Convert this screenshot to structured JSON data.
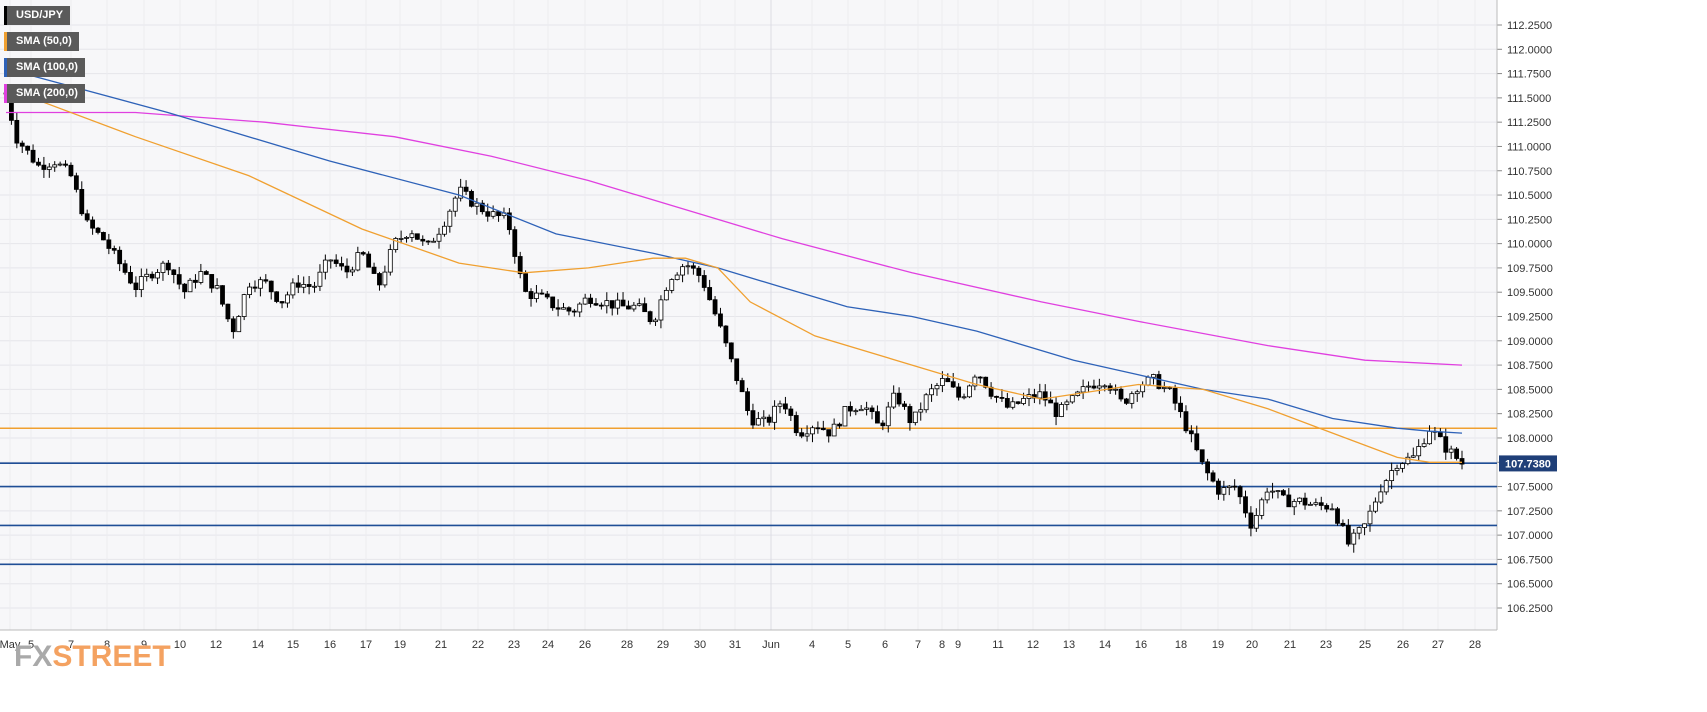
{
  "chart_data": {
    "type": "candlestick",
    "symbol": "USD/JPY",
    "legend": [
      {
        "label": "USD/JPY",
        "color": "#000000"
      },
      {
        "label": "SMA (50,0)",
        "color": "#f0a030"
      },
      {
        "label": "SMA (100,0)",
        "color": "#2e62b8"
      },
      {
        "label": "SMA (200,0)",
        "color": "#e040e0"
      }
    ],
    "ylim": [
      106.0,
      112.5
    ],
    "y_ticks": [
      "112.2500",
      "112.0000",
      "111.7500",
      "111.5000",
      "111.2500",
      "111.0000",
      "110.7500",
      "110.5000",
      "110.2500",
      "110.0000",
      "109.7500",
      "109.5000",
      "109.2500",
      "109.0000",
      "108.7500",
      "108.5000",
      "108.2500",
      "108.0000",
      "107.7500",
      "107.5000",
      "107.2500",
      "107.0000",
      "106.7500",
      "106.5000",
      "106.2500"
    ],
    "x_ticks": [
      "May",
      "5",
      "7",
      "8",
      "9",
      "10",
      "12",
      "14",
      "15",
      "16",
      "17",
      "19",
      "21",
      "22",
      "23",
      "24",
      "26",
      "28",
      "29",
      "30",
      "31",
      "Jun",
      "4",
      "5",
      "6",
      "7",
      "8",
      "9",
      "11",
      "12",
      "13",
      "14",
      "16",
      "18",
      "19",
      "20",
      "21",
      "23",
      "25",
      "26",
      "27",
      "28"
    ],
    "current_price": "107.7380",
    "horizontal_levels": [
      {
        "value": 108.1,
        "color": "#f0a030"
      },
      {
        "value": 107.74,
        "color": "#1f4e96"
      },
      {
        "value": 107.5,
        "color": "#1f4e96"
      },
      {
        "value": 107.1,
        "color": "#1f4e96"
      },
      {
        "value": 106.7,
        "color": "#1f4e96"
      }
    ],
    "price_path": [
      [
        0,
        111.55
      ],
      [
        0.6,
        111.1
      ],
      [
        2,
        110.8
      ],
      [
        3,
        110.85
      ],
      [
        4,
        110.7
      ],
      [
        5,
        110.2
      ],
      [
        6,
        110.05
      ],
      [
        7,
        109.8
      ],
      [
        8,
        109.55
      ],
      [
        9,
        109.7
      ],
      [
        10,
        109.8
      ],
      [
        11,
        109.5
      ],
      [
        12,
        109.7
      ],
      [
        13,
        109.55
      ],
      [
        14,
        109.1
      ],
      [
        15,
        109.6
      ],
      [
        16,
        109.6
      ],
      [
        17,
        109.4
      ],
      [
        18,
        109.6
      ],
      [
        19,
        109.55
      ],
      [
        20,
        109.85
      ],
      [
        21,
        109.7
      ],
      [
        22,
        109.9
      ],
      [
        23,
        109.55
      ],
      [
        24,
        110.0
      ],
      [
        25,
        110.15
      ],
      [
        26,
        109.95
      ],
      [
        27,
        110.2
      ],
      [
        28,
        110.55
      ],
      [
        29,
        110.4
      ],
      [
        30,
        110.3
      ],
      [
        31,
        110.25
      ],
      [
        32,
        109.5
      ],
      [
        33,
        109.45
      ],
      [
        34,
        109.35
      ],
      [
        35,
        109.3
      ],
      [
        36,
        109.45
      ],
      [
        37,
        109.4
      ],
      [
        38,
        109.35
      ],
      [
        39,
        109.35
      ],
      [
        40,
        109.2
      ],
      [
        41,
        109.65
      ],
      [
        42,
        109.8
      ],
      [
        43,
        109.65
      ],
      [
        44,
        109.2
      ],
      [
        45,
        108.7
      ],
      [
        46,
        108.2
      ],
      [
        47,
        108.15
      ],
      [
        48,
        108.4
      ],
      [
        49,
        108.05
      ],
      [
        50,
        108.15
      ],
      [
        51,
        108.05
      ],
      [
        52,
        108.3
      ],
      [
        53,
        108.35
      ],
      [
        54,
        108.1
      ],
      [
        55,
        108.45
      ],
      [
        56,
        108.15
      ],
      [
        57,
        108.45
      ],
      [
        58,
        108.6
      ],
      [
        59,
        108.4
      ],
      [
        60,
        108.7
      ],
      [
        61,
        108.45
      ],
      [
        62,
        108.3
      ],
      [
        63,
        108.4
      ],
      [
        64,
        108.45
      ],
      [
        65,
        108.25
      ],
      [
        66,
        108.4
      ],
      [
        67,
        108.55
      ],
      [
        68,
        108.6
      ],
      [
        69,
        108.35
      ],
      [
        70,
        108.55
      ],
      [
        71,
        108.6
      ],
      [
        72,
        108.45
      ],
      [
        73,
        108.1
      ],
      [
        74,
        107.7
      ],
      [
        75,
        107.45
      ],
      [
        76,
        107.5
      ],
      [
        77,
        107.1
      ],
      [
        78,
        107.5
      ],
      [
        79,
        107.35
      ],
      [
        80,
        107.35
      ],
      [
        81,
        107.3
      ],
      [
        82,
        107.3
      ],
      [
        83,
        106.9
      ],
      [
        84,
        107.1
      ],
      [
        85,
        107.5
      ],
      [
        86,
        107.75
      ],
      [
        87,
        107.8
      ],
      [
        88,
        108.1
      ],
      [
        89,
        107.9
      ],
      [
        90,
        107.74
      ]
    ],
    "sma50_path": [
      [
        0,
        111.6
      ],
      [
        8,
        111.1
      ],
      [
        15,
        110.7
      ],
      [
        22,
        110.15
      ],
      [
        28,
        109.8
      ],
      [
        32,
        109.7
      ],
      [
        36,
        109.75
      ],
      [
        40,
        109.85
      ],
      [
        42,
        109.85
      ],
      [
        44,
        109.75
      ],
      [
        46,
        109.4
      ],
      [
        50,
        109.05
      ],
      [
        55,
        108.8
      ],
      [
        60,
        108.55
      ],
      [
        64,
        108.4
      ],
      [
        70,
        108.55
      ],
      [
        74,
        108.5
      ],
      [
        78,
        108.3
      ],
      [
        82,
        108.05
      ],
      [
        86,
        107.8
      ],
      [
        88,
        107.75
      ],
      [
        90,
        107.75
      ]
    ],
    "sma100_path": [
      [
        0,
        111.8
      ],
      [
        10,
        111.35
      ],
      [
        20,
        110.85
      ],
      [
        28,
        110.5
      ],
      [
        34,
        110.1
      ],
      [
        40,
        109.9
      ],
      [
        44,
        109.75
      ],
      [
        48,
        109.55
      ],
      [
        52,
        109.35
      ],
      [
        56,
        109.25
      ],
      [
        60,
        109.1
      ],
      [
        66,
        108.8
      ],
      [
        70,
        108.65
      ],
      [
        74,
        108.5
      ],
      [
        78,
        108.4
      ],
      [
        82,
        108.2
      ],
      [
        86,
        108.1
      ],
      [
        88,
        108.07
      ],
      [
        90,
        108.05
      ]
    ],
    "sma200_path": [
      [
        0,
        111.35
      ],
      [
        8,
        111.35
      ],
      [
        16,
        111.25
      ],
      [
        24,
        111.1
      ],
      [
        30,
        110.9
      ],
      [
        36,
        110.65
      ],
      [
        42,
        110.35
      ],
      [
        48,
        110.05
      ],
      [
        56,
        109.7
      ],
      [
        64,
        109.4
      ],
      [
        70,
        109.2
      ],
      [
        78,
        108.95
      ],
      [
        84,
        108.8
      ],
      [
        90,
        108.75
      ]
    ],
    "x_count": 93
  },
  "watermark": {
    "fx": "FX",
    "street": "STREET"
  }
}
